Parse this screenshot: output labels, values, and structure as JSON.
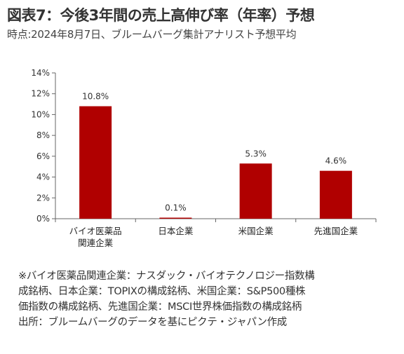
{
  "title": "図表7：今後3年間の売上高伸び率（年率）予想",
  "subtitle": "時点:2024年8月7日、ブルームバーグ集計アナリスト予想平均",
  "chart_data": {
    "type": "bar",
    "categories": [
      [
        "バイオ医薬品",
        "関連企業"
      ],
      [
        "日本企業"
      ],
      [
        "米国企業"
      ],
      [
        "先進国企業"
      ]
    ],
    "values": [
      10.8,
      0.1,
      5.3,
      4.6
    ],
    "value_labels": [
      "10.8%",
      "0.1%",
      "5.3%",
      "4.6%"
    ],
    "yticks": [
      "0%",
      "2%",
      "4%",
      "6%",
      "8%",
      "10%",
      "12%",
      "14%"
    ],
    "ylim": [
      0,
      14
    ],
    "bar_color": "#b00000",
    "grid": false
  },
  "notes": [
    "※バイオ医薬品関連企業：ナスダック・バイオテクノロジー指数構",
    "成銘柄、日本企業：TOPIXの構成銘柄、米国企業：S&P500種株",
    "価指数の構成銘柄、先進国企業：MSCI世界株価指数の構成銘柄",
    "出所：ブルームバーグのデータを基にピクテ・ジャパン作成"
  ]
}
